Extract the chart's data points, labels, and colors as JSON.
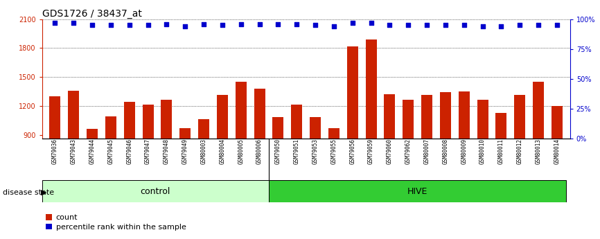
{
  "title": "GDS1726 / 38437_at",
  "samples": [
    "GSM79036",
    "GSM79043",
    "GSM79044",
    "GSM79045",
    "GSM79046",
    "GSM79047",
    "GSM79048",
    "GSM79049",
    "GSM80003",
    "GSM80004",
    "GSM80005",
    "GSM80006",
    "GSM79050",
    "GSM79051",
    "GSM79053",
    "GSM79055",
    "GSM79056",
    "GSM79059",
    "GSM79060",
    "GSM79062",
    "GSM80007",
    "GSM80008",
    "GSM80009",
    "GSM80010",
    "GSM80011",
    "GSM80012",
    "GSM80013",
    "GSM80014"
  ],
  "counts": [
    1300,
    1360,
    960,
    1090,
    1240,
    1210,
    1260,
    970,
    1060,
    1310,
    1450,
    1380,
    1080,
    1210,
    1080,
    970,
    1820,
    1890,
    1320,
    1260,
    1310,
    1340,
    1350,
    1260,
    1130,
    1310,
    1450,
    1200
  ],
  "percentiles": [
    97,
    97,
    95,
    95,
    95,
    95,
    96,
    94,
    96,
    95,
    96,
    96,
    96,
    96,
    95,
    94,
    97,
    97,
    95,
    95,
    95,
    95,
    95,
    94,
    94,
    95,
    95,
    95
  ],
  "group_labels": [
    "control",
    "HIVE"
  ],
  "group_control_count": 12,
  "group_hive_count": 16,
  "ylim_left": [
    860,
    2100
  ],
  "ylim_right": [
    0,
    100
  ],
  "yticks_left": [
    900,
    1200,
    1500,
    1800,
    2100
  ],
  "yticks_right": [
    0,
    25,
    50,
    75,
    100
  ],
  "bar_color": "#cc2200",
  "dot_color": "#0000cc",
  "control_bg": "#ccffcc",
  "hive_bg": "#33cc33",
  "tick_fontsize": 7,
  "label_fontsize": 6,
  "legend_fontsize": 8,
  "title_fontsize": 10,
  "disease_state_label": "disease state"
}
